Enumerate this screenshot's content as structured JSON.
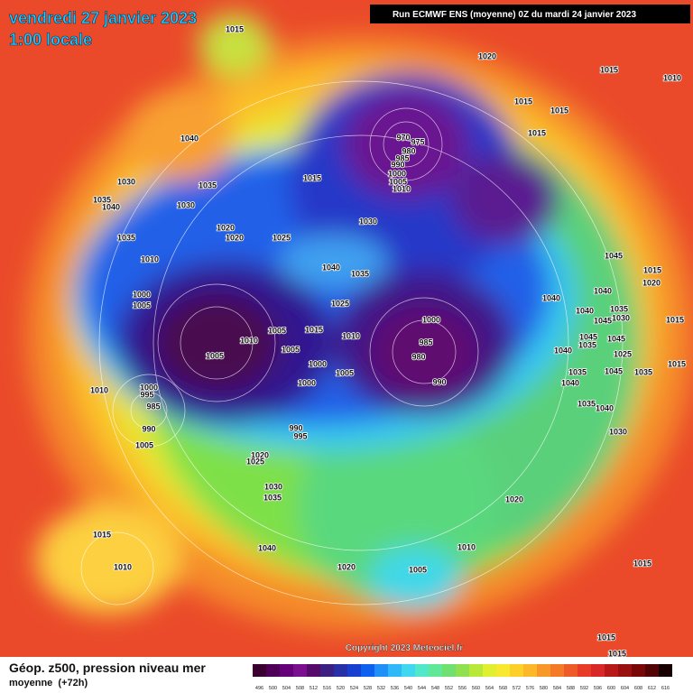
{
  "header": {
    "title": "vendredi 27 janvier 2023",
    "subtitle": "1:00 locale",
    "run": "Run ECMWF ENS (moyenne) 0Z du mardi 24 janvier 2023"
  },
  "footer": {
    "caption": "Géop. z500, pression niveau mer",
    "caption2": "moyenne  (+72h)",
    "copyright": "Copyright 2023 Meteociel.fr"
  },
  "legend": {
    "values": [
      "496",
      "500",
      "504",
      "508",
      "512",
      "516",
      "520",
      "524",
      "528",
      "532",
      "536",
      "540",
      "544",
      "548",
      "552",
      "556",
      "560",
      "564",
      "568",
      "572",
      "576",
      "580",
      "584",
      "588",
      "592",
      "596",
      "600",
      "604",
      "608",
      "612",
      "616"
    ]
  },
  "isobar_labels": [
    "1015",
    "1020",
    "1015",
    "1010",
    "1040",
    "970",
    "975",
    "980",
    "985",
    "990",
    "1000",
    "1005",
    "1010",
    "1015",
    "1015",
    "1015",
    "1030",
    "1035",
    "1035",
    "1040",
    "1030",
    "1015",
    "1030",
    "1020",
    "1020",
    "1025",
    "1035",
    "1040",
    "1035",
    "1010",
    "1045",
    "1015",
    "1020",
    "1040",
    "1040",
    "1000",
    "1005",
    "1025",
    "1035",
    "1030",
    "1045",
    "1040",
    "1015",
    "1000",
    "1005",
    "1015",
    "1010",
    "1010",
    "985",
    "1045",
    "1045",
    "1040",
    "1035",
    "1025",
    "1005",
    "1005",
    "980",
    "1000",
    "1005",
    "1035",
    "1045",
    "1035",
    "1015",
    "990",
    "1040",
    "1000",
    "1010",
    "1000",
    "995",
    "985",
    "1035",
    "1040",
    "990",
    "990",
    "995",
    "1030",
    "1005",
    "1020",
    "1025",
    "1030",
    "1035",
    "1020",
    "1015",
    "1040",
    "1010",
    "1010",
    "1020",
    "1005",
    "1015",
    "1015",
    "1015"
  ]
}
